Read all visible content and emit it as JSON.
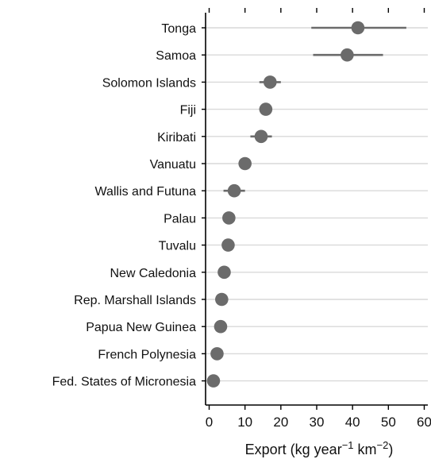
{
  "chart_data": {
    "type": "scatter",
    "subtype": "dot-plot-with-error-bars",
    "categories": [
      "Tonga",
      "Samoa",
      "Solomon Islands",
      "Fiji",
      "Kiribati",
      "Vanuatu",
      "Wallis and Futuna",
      "Palau",
      "Tuvalu",
      "New Caledonia",
      "Rep. Marshall Islands",
      "Papua New Guinea",
      "French Polynesia",
      "Fed. States of Micronesia"
    ],
    "values": [
      41.5,
      38.5,
      17.0,
      15.8,
      14.5,
      10.0,
      7.0,
      5.5,
      5.3,
      4.2,
      3.5,
      3.2,
      2.2,
      1.2
    ],
    "error_low": [
      28.5,
      29.0,
      14.0,
      14.0,
      11.5,
      10.0,
      4.0,
      5.5,
      5.3,
      4.2,
      3.5,
      3.2,
      2.2,
      1.2
    ],
    "error_high": [
      55.0,
      48.5,
      20.0,
      17.5,
      17.5,
      10.0,
      10.0,
      5.5,
      5.3,
      4.2,
      3.5,
      3.2,
      2.2,
      1.2
    ],
    "xlabel_parts": [
      "Export (kg year",
      "−1",
      " km",
      "−2",
      ")"
    ],
    "ylabel": "",
    "title": "",
    "xlim": [
      -1,
      61
    ],
    "xticks": [
      0,
      10,
      20,
      30,
      40,
      50,
      60
    ],
    "grid": "horizontal",
    "marker_color": "#6b6b6b",
    "grid_color": "#d9d9d9",
    "axis_color": "#000000"
  }
}
